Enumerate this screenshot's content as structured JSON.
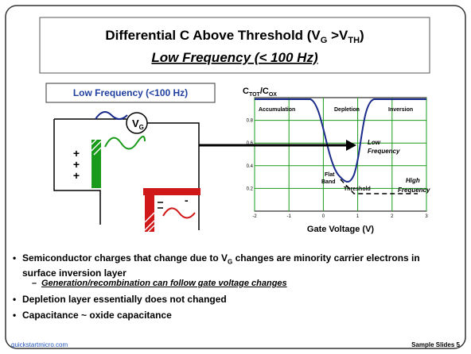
{
  "title": {
    "line1": [
      "Differential C Above Threshold (V",
      "G",
      " >V",
      "TH",
      ")"
    ],
    "line2": "Low Frequency (< 100 Hz)"
  },
  "diagram": {
    "box_label": "Low Frequency (<100 Hz)",
    "gate": [
      "V",
      "G"
    ],
    "plus": [
      "+",
      "+",
      "+"
    ],
    "minus": "-"
  },
  "plot": {
    "ylabel": [
      "C",
      "TOT",
      "/C",
      "OX"
    ],
    "xlabel": "Gate Voltage (V)",
    "xlim": [
      -2,
      3
    ],
    "ylim": [
      0,
      1
    ],
    "xticks": [
      -2,
      -1,
      0,
      1,
      2,
      3
    ],
    "yticks": [
      0.2,
      0.4,
      0.6,
      0.8
    ],
    "regions": [
      "Accumulation",
      "Depletion",
      "Inversion"
    ],
    "low_frequency": [
      "Low",
      "Frequency"
    ],
    "flat_band": [
      "Flat",
      "Band"
    ],
    "threshold": "Threshold",
    "high_frequency": [
      "High",
      "Frequency"
    ]
  },
  "bullets": [
    {
      "parts": [
        "Semiconductor charges that change due to V",
        "G",
        " changes are minority carrier electrons in surface inversion layer"
      ]
    },
    {
      "sub": "Generation/recombination can follow gate voltage changes"
    },
    {
      "parts": [
        "Depletion layer essentially does not changed"
      ]
    },
    {
      "parts": [
        "Capacitance ~ oxide capacitance"
      ]
    }
  ],
  "footer": {
    "left": "quickstartmicro.com",
    "right": "Sample Slides 5"
  }
}
